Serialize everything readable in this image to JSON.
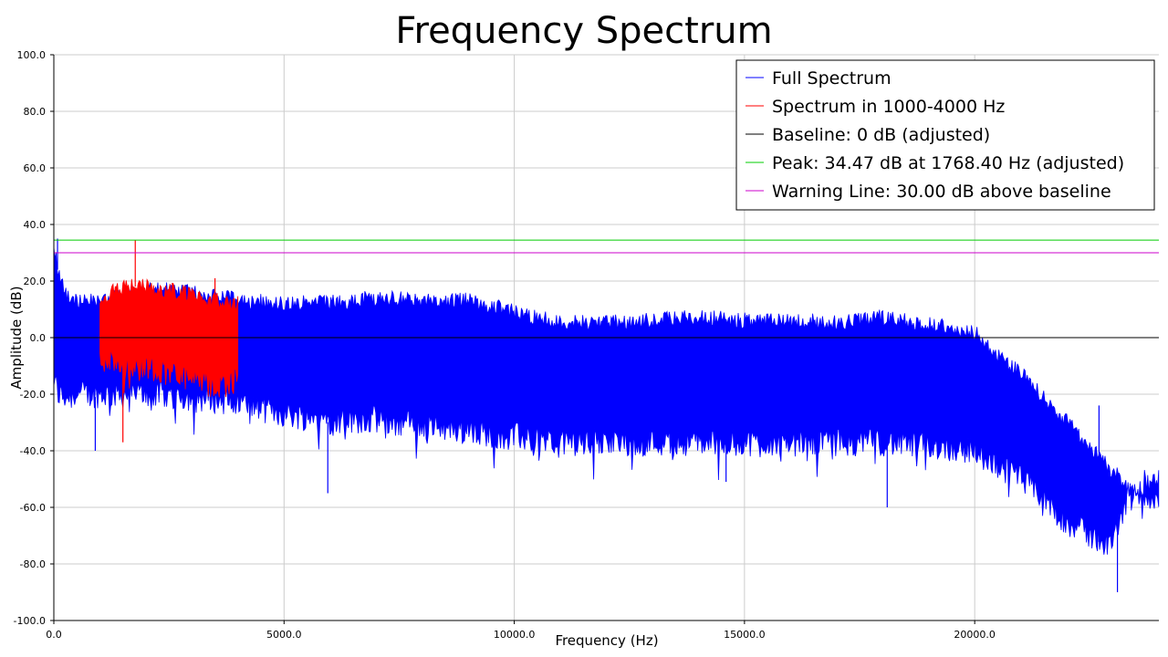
{
  "chart_data": {
    "type": "line",
    "title": "Frequency Spectrum",
    "xlabel": "Frequency (Hz)",
    "ylabel": "Amplitude (dB)",
    "xlim": [
      0,
      24000
    ],
    "ylim": [
      -100,
      100
    ],
    "grid": true,
    "legend_position": "top-right",
    "x_ticks": [
      0,
      5000,
      10000,
      15000,
      20000
    ],
    "x_tick_labels": [
      "0.0",
      "5000.0",
      "10000.0",
      "15000.0",
      "20000.0"
    ],
    "y_ticks": [
      -100,
      -80,
      -60,
      -40,
      -20,
      0,
      20,
      40,
      60,
      80,
      100
    ],
    "y_tick_labels": [
      "-100.0",
      "-80.0",
      "-60.0",
      "-40.0",
      "-20.0",
      "0.0",
      "20.0",
      "40.0",
      "60.0",
      "80.0",
      "100.0"
    ],
    "series": [
      {
        "name": "Full Spectrum",
        "color": "#0000ff",
        "style": "band",
        "x": [
          0,
          100,
          300,
          600,
          1000,
          2000,
          3000,
          4000,
          5000,
          6000,
          7000,
          8000,
          9000,
          10000,
          11000,
          12000,
          13000,
          14000,
          15000,
          16000,
          17000,
          18000,
          19000,
          20000,
          20500,
          21000,
          21500,
          22000,
          22500,
          23000,
          23300,
          23600,
          24000
        ],
        "upper": [
          36,
          26,
          18,
          15,
          17,
          20,
          19,
          16,
          15,
          15,
          17,
          16,
          16,
          12,
          8,
          8,
          9,
          10,
          9,
          9,
          8,
          10,
          8,
          5,
          -3,
          -10,
          -18,
          -27,
          -36,
          -44,
          -50,
          -54,
          -55
        ],
        "lower": [
          -20,
          -25,
          -26,
          -25,
          -25,
          -25,
          -26,
          -28,
          -32,
          -34,
          -34,
          -36,
          -38,
          -40,
          -42,
          -42,
          -42,
          -42,
          -42,
          -42,
          -42,
          -42,
          -43,
          -45,
          -50,
          -55,
          -62,
          -70,
          -75,
          -78,
          -62,
          -57,
          -56
        ]
      },
      {
        "name": "Spectrum in 1000-4000 Hz",
        "color": "#ff0000",
        "style": "band",
        "x": [
          1000,
          1500,
          1768.4,
          2000,
          2500,
          3000,
          3500,
          4000
        ],
        "upper": [
          17,
          21,
          22,
          21,
          20,
          18,
          16,
          15
        ],
        "lower": [
          -12,
          -14,
          -16,
          -15,
          -17,
          -20,
          -22,
          -20
        ]
      },
      {
        "name": "Baseline: 0 dB (adjusted)",
        "color": "#000000",
        "style": "hline",
        "y": 0
      },
      {
        "name": "Peak: 34.47 dB at 1768.40 Hz (adjusted)",
        "color": "#00cc00",
        "style": "hline",
        "y": 34.47
      },
      {
        "name": "Warning Line: 30.00 dB above baseline",
        "color": "#cc00cc",
        "style": "hline",
        "y": 30
      }
    ],
    "spikes": [
      {
        "x": 80,
        "y": 35,
        "series": 0
      },
      {
        "x": 1768.4,
        "y": 34.47,
        "series": 1
      },
      {
        "x": 1500,
        "y": -37,
        "series": 1
      },
      {
        "x": 3500,
        "y": 21,
        "series": 1
      },
      {
        "x": 900,
        "y": -40,
        "series": 0
      },
      {
        "x": 5950,
        "y": -55,
        "series": 0
      },
      {
        "x": 14600,
        "y": -51,
        "series": 0
      },
      {
        "x": 18100,
        "y": -60,
        "series": 0
      },
      {
        "x": 22700,
        "y": -24,
        "series": 0
      },
      {
        "x": 23100,
        "y": -90,
        "series": 0
      }
    ]
  }
}
